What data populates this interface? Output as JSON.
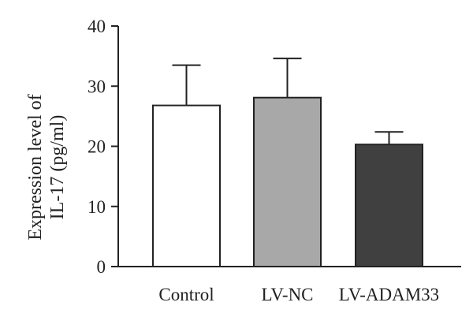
{
  "chart_data": {
    "type": "bar",
    "title": "",
    "xlabel": "",
    "ylabel_lines": [
      "Expression level of",
      "IL-17 (pg/ml)"
    ],
    "categories": [
      "Control",
      "LV-NC",
      "LV-ADAM33"
    ],
    "values": [
      26.8,
      28.1,
      20.3
    ],
    "error": [
      6.7,
      6.5,
      2.1
    ],
    "ylim": [
      0,
      40
    ],
    "yticks": [
      0,
      10,
      20,
      30,
      40
    ],
    "ytick_labels": [
      "0",
      "10",
      "20",
      "30",
      "40"
    ],
    "grid": false,
    "legend": "none",
    "bar_colors": [
      "#ffffff",
      "#a8a8a8",
      "#404040"
    ],
    "edge_color": "#222222"
  }
}
